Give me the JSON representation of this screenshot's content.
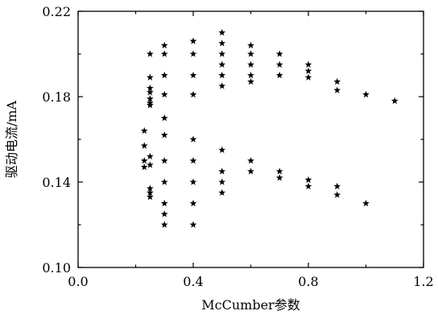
{
  "chart_data": {
    "type": "scatter",
    "xlabel": "McCumber参数",
    "ylabel": "驱动电流/mA",
    "xlim": [
      0.0,
      1.2
    ],
    "ylim": [
      0.1,
      0.22
    ],
    "xticks": [
      0.0,
      0.4,
      0.8,
      1.2
    ],
    "xtick_labels": [
      "0.0",
      "0.4",
      "0.8",
      "1.2"
    ],
    "yticks": [
      0.1,
      0.14,
      0.18,
      0.22
    ],
    "ytick_labels": [
      "0.10",
      "0.14",
      "0.18",
      "0.22"
    ],
    "marker": "star",
    "grid": false,
    "points": [
      [
        0.23,
        0.164
      ],
      [
        0.23,
        0.157
      ],
      [
        0.23,
        0.15
      ],
      [
        0.23,
        0.147
      ],
      [
        0.25,
        0.2
      ],
      [
        0.25,
        0.189
      ],
      [
        0.25,
        0.184
      ],
      [
        0.25,
        0.182
      ],
      [
        0.25,
        0.179
      ],
      [
        0.25,
        0.177
      ],
      [
        0.25,
        0.176
      ],
      [
        0.25,
        0.152
      ],
      [
        0.25,
        0.148
      ],
      [
        0.25,
        0.137
      ],
      [
        0.25,
        0.135
      ],
      [
        0.25,
        0.133
      ],
      [
        0.3,
        0.204
      ],
      [
        0.3,
        0.2
      ],
      [
        0.3,
        0.19
      ],
      [
        0.3,
        0.181
      ],
      [
        0.3,
        0.17
      ],
      [
        0.3,
        0.162
      ],
      [
        0.3,
        0.15
      ],
      [
        0.3,
        0.14
      ],
      [
        0.3,
        0.13
      ],
      [
        0.3,
        0.125
      ],
      [
        0.3,
        0.12
      ],
      [
        0.4,
        0.206
      ],
      [
        0.4,
        0.2
      ],
      [
        0.4,
        0.19
      ],
      [
        0.4,
        0.181
      ],
      [
        0.4,
        0.16
      ],
      [
        0.4,
        0.15
      ],
      [
        0.4,
        0.14
      ],
      [
        0.4,
        0.13
      ],
      [
        0.4,
        0.12
      ],
      [
        0.5,
        0.21
      ],
      [
        0.5,
        0.205
      ],
      [
        0.5,
        0.2
      ],
      [
        0.5,
        0.195
      ],
      [
        0.5,
        0.19
      ],
      [
        0.5,
        0.185
      ],
      [
        0.5,
        0.155
      ],
      [
        0.5,
        0.145
      ],
      [
        0.5,
        0.14
      ],
      [
        0.5,
        0.135
      ],
      [
        0.6,
        0.204
      ],
      [
        0.6,
        0.2
      ],
      [
        0.6,
        0.195
      ],
      [
        0.6,
        0.19
      ],
      [
        0.6,
        0.187
      ],
      [
        0.6,
        0.15
      ],
      [
        0.6,
        0.145
      ],
      [
        0.7,
        0.2
      ],
      [
        0.7,
        0.195
      ],
      [
        0.7,
        0.19
      ],
      [
        0.7,
        0.145
      ],
      [
        0.7,
        0.142
      ],
      [
        0.8,
        0.195
      ],
      [
        0.8,
        0.192
      ],
      [
        0.8,
        0.189
      ],
      [
        0.8,
        0.141
      ],
      [
        0.8,
        0.138
      ],
      [
        0.9,
        0.187
      ],
      [
        0.9,
        0.183
      ],
      [
        0.9,
        0.138
      ],
      [
        0.9,
        0.134
      ],
      [
        1.0,
        0.181
      ],
      [
        1.0,
        0.13
      ],
      [
        1.1,
        0.178
      ]
    ]
  }
}
